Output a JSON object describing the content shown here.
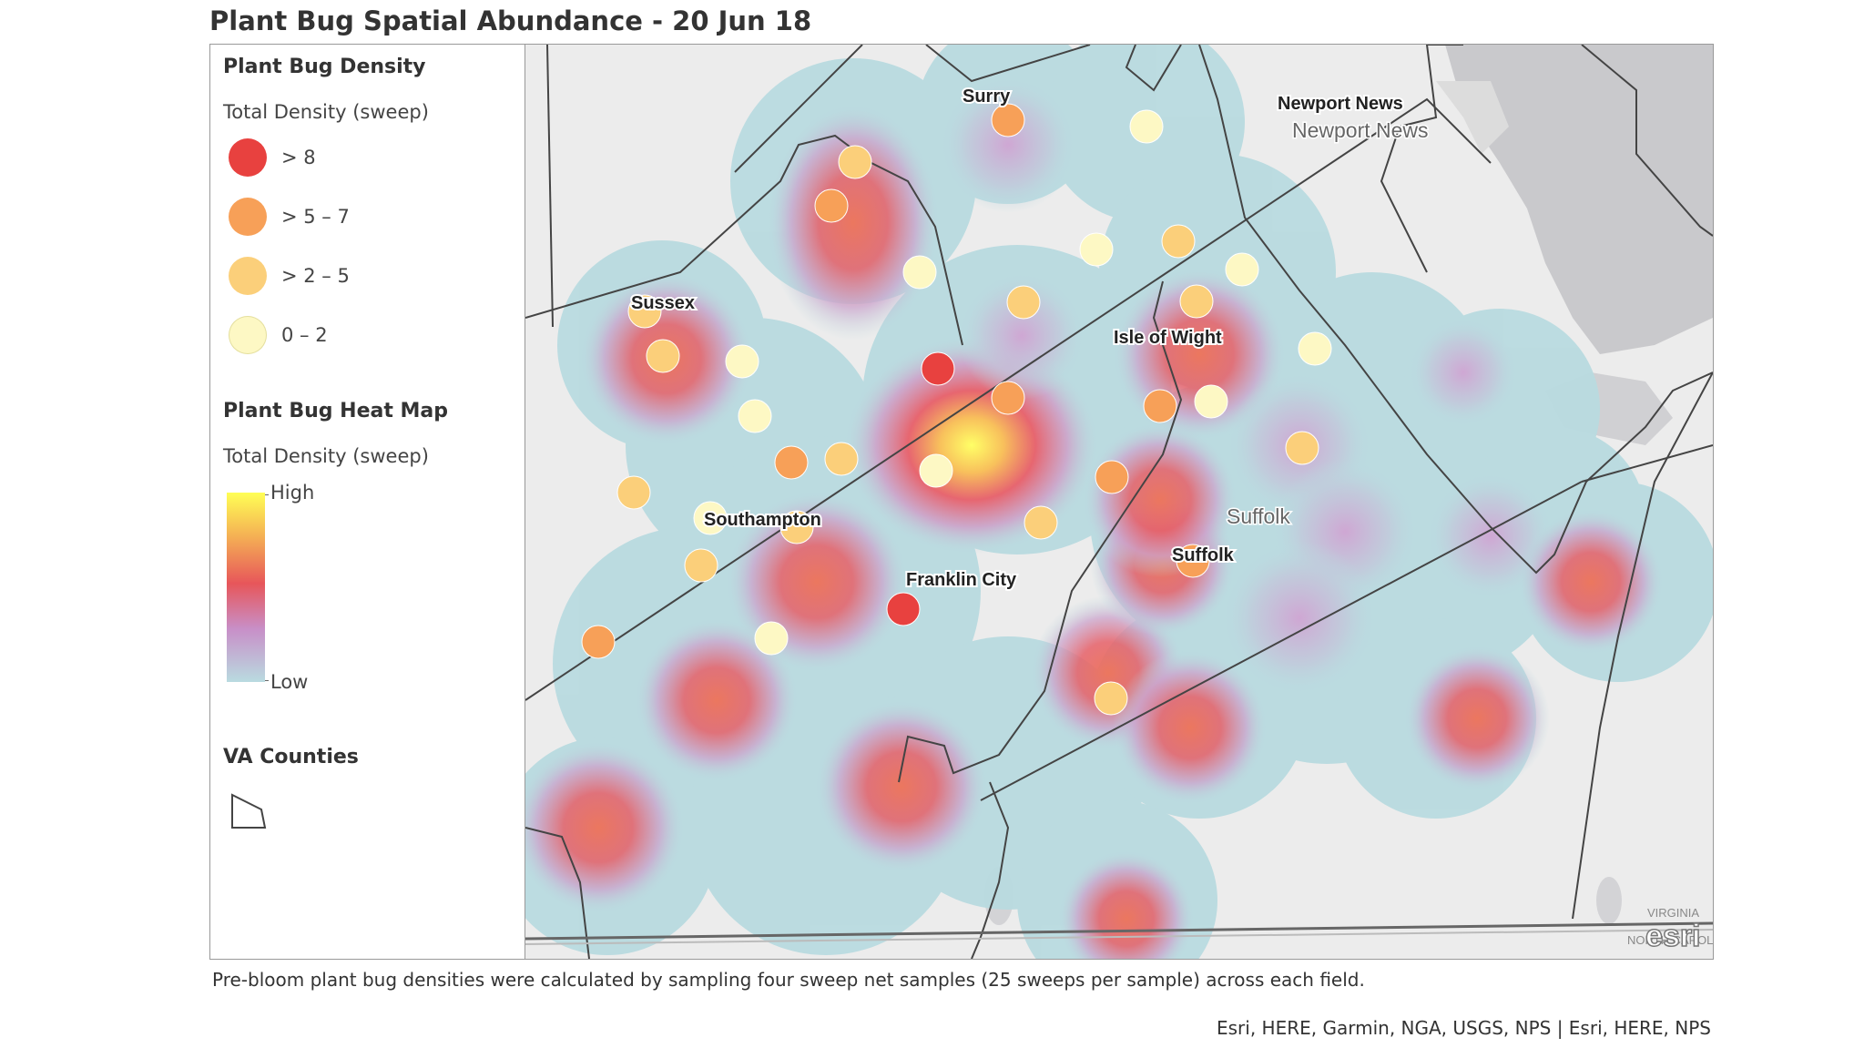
{
  "title": "Plant Bug Spatial Abundance - 20 Jun 18",
  "legend": {
    "density_heading": "Plant Bug Density",
    "density_subheading": "Total Density (sweep)",
    "density_classes": [
      {
        "label": "> 8",
        "color": "#e8413f"
      },
      {
        "label": "> 5 – 7",
        "color": "#f7a058"
      },
      {
        "label": "> 2 – 5",
        "color": "#fbcf7a"
      },
      {
        "label": "0 – 2",
        "color": "#fdf8c4"
      }
    ],
    "heatmap_heading": "Plant Bug Heat Map",
    "heatmap_subheading": "Total Density (sweep)",
    "heatmap_high": "High",
    "heatmap_low": "Low",
    "counties_heading": "VA Counties"
  },
  "map": {
    "labels": {
      "surry": "Surry",
      "newport_bold": "Newport News",
      "newport_grey": "Newport News",
      "sussex": "Sussex",
      "isle_of_wight": "Isle of Wight",
      "southampton": "Southampton",
      "suffolk_grey": "Suffolk",
      "suffolk_bold": "Suffolk",
      "franklin_city": "Franklin City"
    },
    "logo": "esri",
    "corner_text_1": "VIRGINIA",
    "corner_text_2": "NORTH CAROLINA"
  },
  "footnote": "Pre-bloom plant bug densities were calculated by sampling four sweep net samples (25 sweeps per sample) across each field.",
  "credits": "Esri, HERE, Garmin, NGA, USGS, NPS | Esri, HERE, NPS"
}
